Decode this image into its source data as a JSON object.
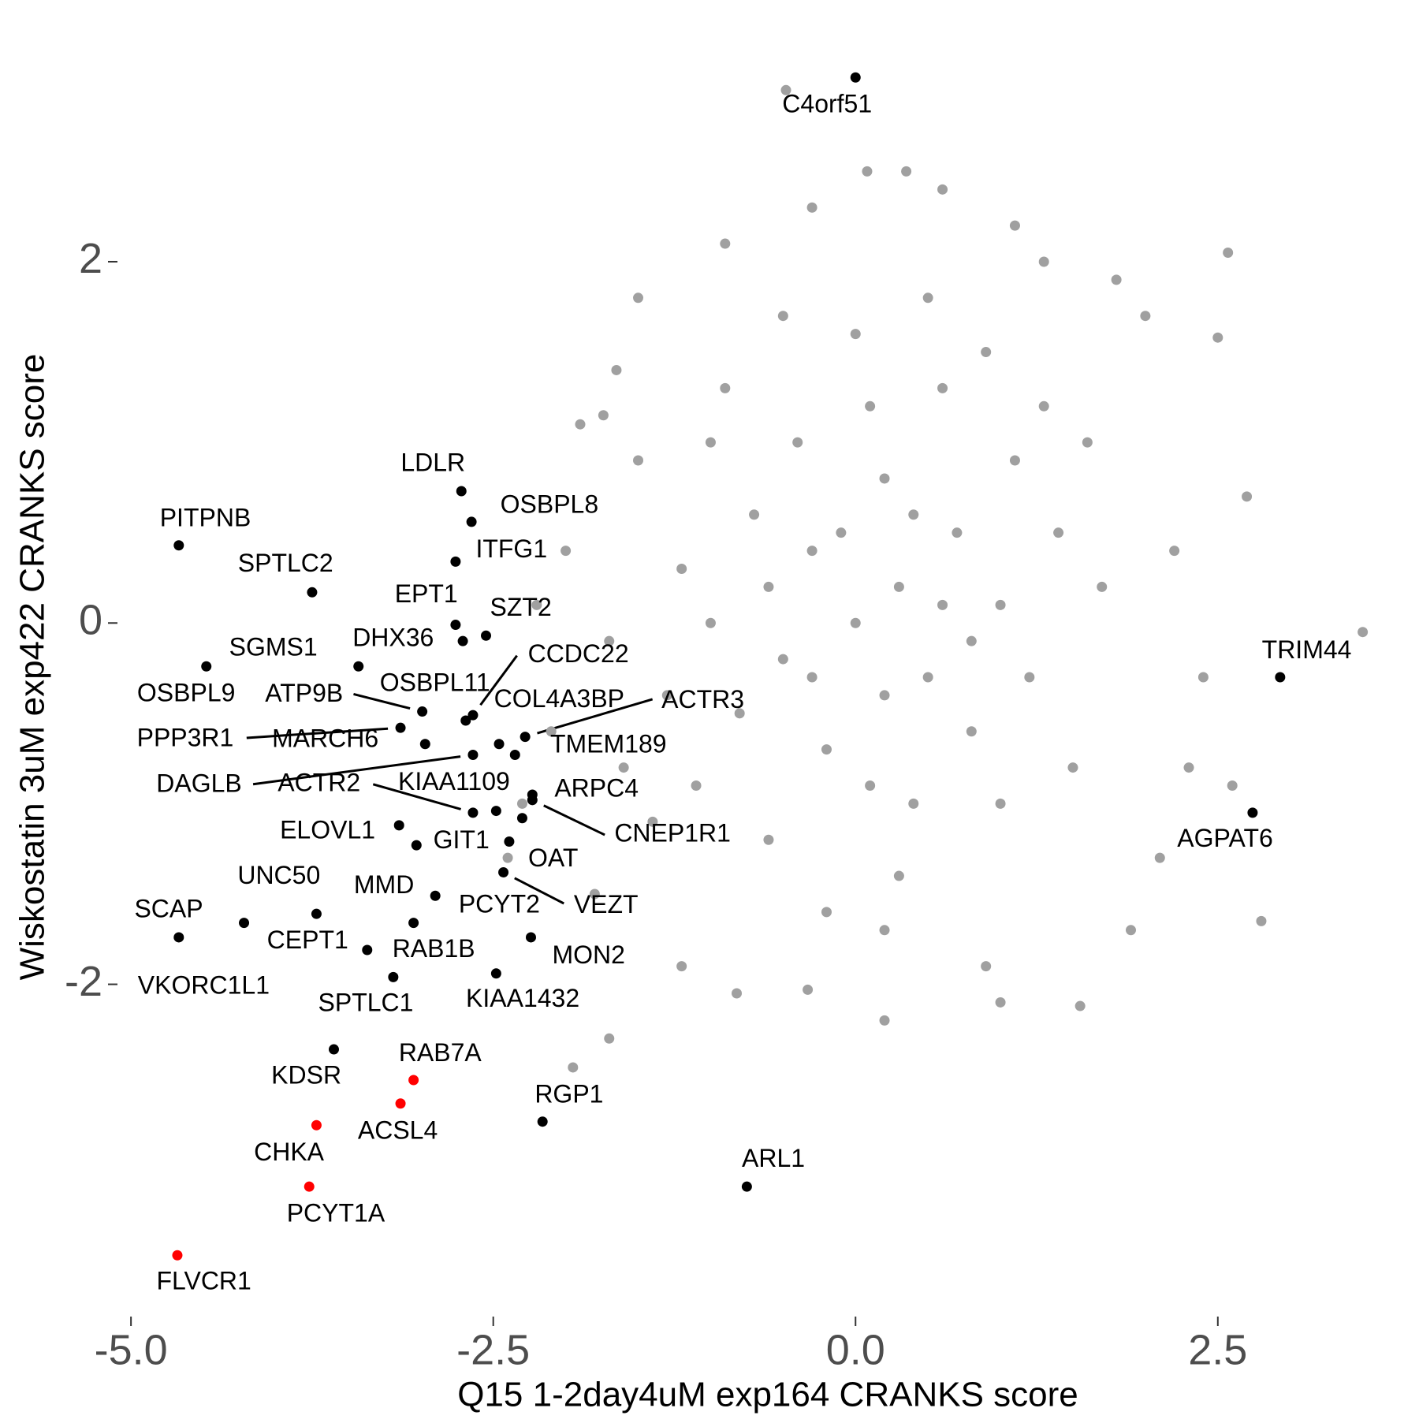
{
  "chart_data": {
    "type": "scatter",
    "xlabel": "Q15 1-2day4uM exp164 CRANKS score",
    "ylabel": "Wiskostatin 3uM exp422 CRANKS score",
    "xlim": [
      -5.3,
      3.6
    ],
    "ylim": [
      -3.8,
      3.2
    ],
    "xticks": [
      {
        "value": -5,
        "label": "-5.0"
      },
      {
        "value": -2.5,
        "label": "-2.5"
      },
      {
        "value": 0,
        "label": "0.0"
      },
      {
        "value": 2.5,
        "label": "2.5"
      }
    ],
    "yticks": [
      -2,
      0,
      2
    ],
    "grid": false,
    "series": [
      {
        "color": "#a0a0a0",
        "x": [
          0,
          0.3,
          -0.3,
          0.5,
          -0.5,
          0.2,
          -0.2,
          0.7,
          -0.7,
          0.8,
          -0.8,
          0.1,
          0.4,
          -0.4,
          1.0,
          -1.0,
          1.1,
          -1.1,
          0.6,
          -0.6,
          1.2,
          -1.2,
          0.9,
          -0.9,
          0.3,
          1.4,
          -1.3,
          0.0,
          0.2,
          -0.1,
          0.6,
          -0.6,
          0.4,
          -0.3,
          0.8,
          0.1,
          1.0,
          -1.0,
          1.3,
          -1.4,
          1.5,
          -1.5,
          0.5,
          -0.5,
          0.2,
          -0.2,
          1.7,
          -1.7,
          1.6,
          -1.6,
          3.5,
          2.57,
          2.5,
          2.7,
          -1.65,
          -1.74,
          0.08,
          0.35,
          1.1,
          -0.48,
          2.8,
          -1.95,
          -1.7,
          -0.82,
          1.55,
          0.2,
          -0.33,
          2.0,
          2.2,
          2.3,
          2.1,
          -1.8,
          -2.1,
          -2.0,
          -1.9,
          1.8,
          -0.9,
          -0.3,
          0.6,
          1.3,
          1.9,
          -1.2,
          0.9,
          -2.3,
          2.4,
          -2.2,
          1.0,
          -1.5,
          2.6,
          -2.4
        ],
        "y": [
          0,
          0.2,
          0.4,
          -0.3,
          -0.2,
          0.8,
          -0.7,
          0.5,
          0.6,
          -0.6,
          -0.5,
          1.2,
          -1.0,
          1.0,
          0.1,
          0.0,
          0.9,
          -0.9,
          1.3,
          -1.2,
          -0.3,
          0.3,
          1.5,
          1.3,
          -1.4,
          0.5,
          -0.4,
          1.6,
          -0.4,
          0.5,
          0.1,
          0.2,
          0.6,
          -0.3,
          -0.1,
          -0.9,
          -1.0,
          1.0,
          1.2,
          -1.1,
          -0.8,
          0.9,
          1.8,
          1.7,
          -1.7,
          -1.6,
          0.2,
          -0.1,
          1.0,
          -0.8,
          -0.05,
          2.05,
          1.58,
          0.7,
          1.4,
          1.15,
          2.5,
          2.5,
          2.2,
          2.95,
          -1.65,
          -2.46,
          -2.3,
          -2.05,
          -2.12,
          -2.2,
          -2.03,
          1.7,
          0.4,
          -0.8,
          -1.3,
          -1.5,
          -0.6,
          0.4,
          1.1,
          1.9,
          2.1,
          2.3,
          2.4,
          2.0,
          -1.7,
          -1.9,
          -1.9,
          -1.0,
          -0.3,
          0.1,
          -2.1,
          1.8,
          -0.9,
          -1.3
        ]
      },
      {
        "color": "#000000",
        "labels": [
          "C4orf51",
          "TRIM44",
          "AGPAT6",
          "ARL1",
          "RGP1",
          "LDLR",
          "OSBPL8",
          "ITFG1",
          "PITPNB",
          "SPTLC2",
          "EPT1",
          "SZT2",
          "DHX36",
          "SGMS1",
          "OSBPL9",
          "CCDC22",
          "COL4A3BP",
          "OSBPL11",
          "ATP9B",
          "PPP3R1",
          "MARCH6",
          "ACTR3",
          "TMEM189",
          "DAGLB",
          "ACTR2",
          "KIAA1109",
          "ARPC4",
          "CNEP1R1",
          "ELOVL1",
          "GIT1",
          "OAT",
          "VEZT",
          "PCYT2",
          "MMD",
          "UNC50",
          "SCAP",
          "CEPT1",
          "RAB1B",
          "VKORC1L1",
          "SPTLC1",
          "KIAA1432",
          "MON2",
          "KDSR"
        ],
        "x": [
          0,
          2.93,
          2.74,
          -0.75,
          -2.16,
          -2.72,
          -2.65,
          -2.76,
          -4.67,
          -3.75,
          -2.76,
          -2.55,
          -2.71,
          -3.43,
          -4.48,
          -2.64,
          -2.69,
          -2.46,
          -2.99,
          -3.14,
          -2.97,
          -2.28,
          -2.35,
          -2.64,
          -2.64,
          -2.48,
          -2.23,
          -2.23,
          -3.15,
          -3.03,
          -2.39,
          -2.43,
          -2.3,
          -2.9,
          -3.72,
          -4.67,
          -3.37,
          -3.05,
          -4.22,
          -3.19,
          -2.48,
          -2.24,
          -3.6
        ],
        "y": [
          3.02,
          -0.3,
          -1.05,
          -3.12,
          -2.76,
          0.73,
          0.56,
          0.34,
          0.43,
          0.17,
          -0.01,
          -0.07,
          -0.1,
          -0.24,
          -0.24,
          -0.51,
          -0.54,
          -0.67,
          -0.49,
          -0.58,
          -0.67,
          -0.63,
          -0.73,
          -0.73,
          -1.05,
          -1.04,
          -0.95,
          -0.98,
          -1.12,
          -1.23,
          -1.21,
          -1.38,
          -1.08,
          -1.51,
          -1.61,
          -1.74,
          -1.81,
          -1.66,
          -1.66,
          -1.96,
          -1.94,
          -1.74,
          -2.36
        ]
      },
      {
        "color": "#ff0000",
        "labels": [
          "RAB7A",
          "ACSL4",
          "CHKA",
          "PCYT1A",
          "FLVCR1"
        ],
        "x": [
          -3.05,
          -3.14,
          -3.72,
          -3.77,
          -4.68
        ],
        "y": [
          -2.53,
          -2.66,
          -2.78,
          -3.12,
          -3.5
        ]
      }
    ]
  }
}
